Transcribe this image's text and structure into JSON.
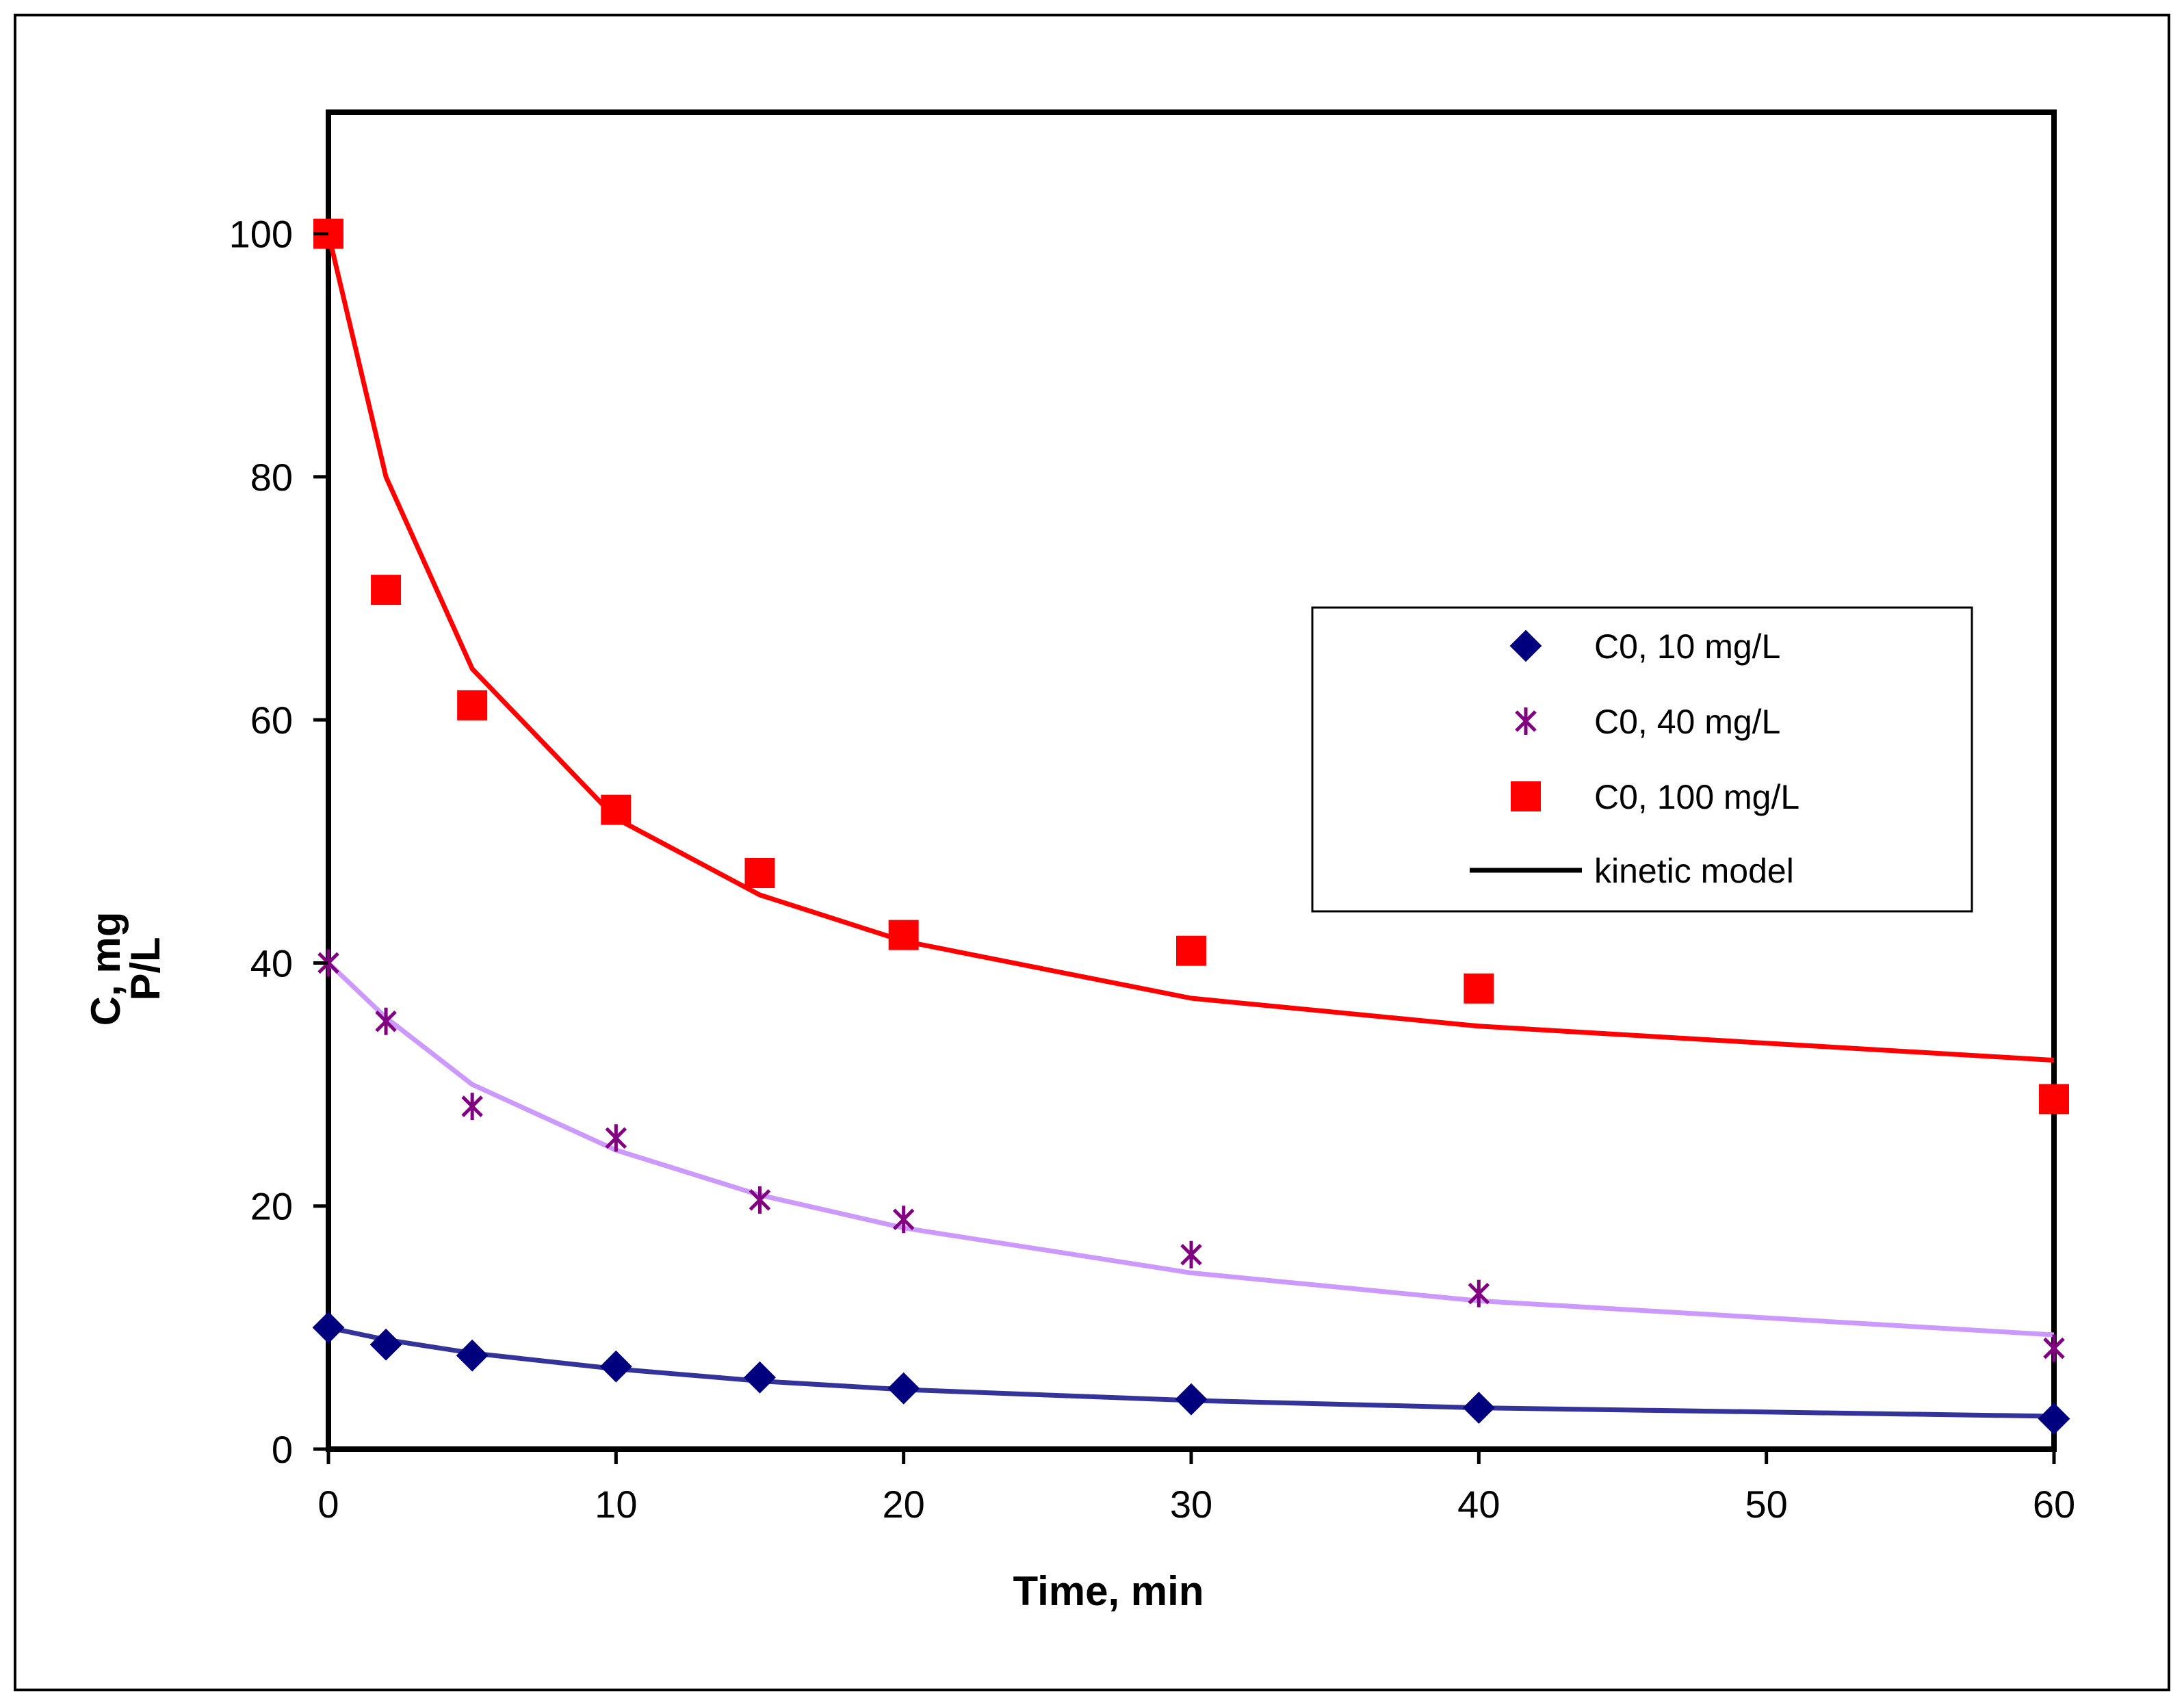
{
  "chart_data": {
    "type": "scatter",
    "xlabel": "Time, min",
    "ylabel_lines": [
      "C, mg",
      "P/L"
    ],
    "xlim": [
      0,
      60
    ],
    "ylim": [
      0,
      110
    ],
    "xticks": [
      0,
      10,
      20,
      30,
      40,
      50,
      60
    ],
    "yticks": [
      0,
      20,
      40,
      60,
      80,
      100
    ],
    "grid": false,
    "legend_position": "center-right",
    "series": [
      {
        "name": "C0, 10 mg/L",
        "marker": "diamond",
        "color": "#00007f",
        "x": [
          0,
          2,
          5,
          10,
          15,
          20,
          30,
          40,
          60
        ],
        "y": [
          10,
          8.6,
          7.7,
          6.8,
          5.9,
          5.0,
          4.1,
          3.4,
          2.5
        ]
      },
      {
        "name": "C0, 40 mg/L",
        "marker": "star",
        "color": "#800080",
        "x": [
          0,
          2,
          5,
          10,
          15,
          20,
          30,
          40,
          60
        ],
        "y": [
          40,
          35.2,
          28.2,
          25.6,
          20.5,
          18.9,
          16.0,
          12.8,
          8.3
        ]
      },
      {
        "name": "C0, 100 mg/L",
        "marker": "square",
        "color": "#ff0000",
        "x": [
          0,
          2,
          5,
          10,
          15,
          20,
          30,
          40,
          60
        ],
        "y": [
          100,
          70.7,
          61.2,
          52.6,
          47.4,
          42.3,
          41.0,
          37.9,
          28.8
        ]
      }
    ],
    "model_lines": [
      {
        "for_series": "C0, 10 mg/L",
        "color": "#333399",
        "x": [
          0,
          2,
          5,
          10,
          15,
          20,
          30,
          40,
          60
        ],
        "y": [
          10,
          9.0,
          7.9,
          6.6,
          5.6,
          4.9,
          4.0,
          3.4,
          2.7
        ]
      },
      {
        "for_series": "C0, 40 mg/L",
        "color": "#cc99ff",
        "x": [
          0,
          2,
          5,
          10,
          15,
          20,
          30,
          40,
          60
        ],
        "y": [
          40,
          35.5,
          30.0,
          24.6,
          20.9,
          18.2,
          14.5,
          12.2,
          9.4
        ]
      },
      {
        "for_series": "C0, 100 mg/L",
        "color": "#ff0000",
        "x": [
          0,
          2,
          5,
          10,
          15,
          20,
          30,
          40,
          60
        ],
        "y": [
          100,
          80.0,
          64.2,
          51.9,
          45.6,
          41.8,
          37.1,
          34.8,
          32.0
        ]
      }
    ],
    "legend": {
      "entries": [
        "C0, 10 mg/L",
        "C0, 40 mg/L",
        "C0, 100 mg/L",
        "kinetic model"
      ],
      "model_line_color": "#000000"
    }
  }
}
